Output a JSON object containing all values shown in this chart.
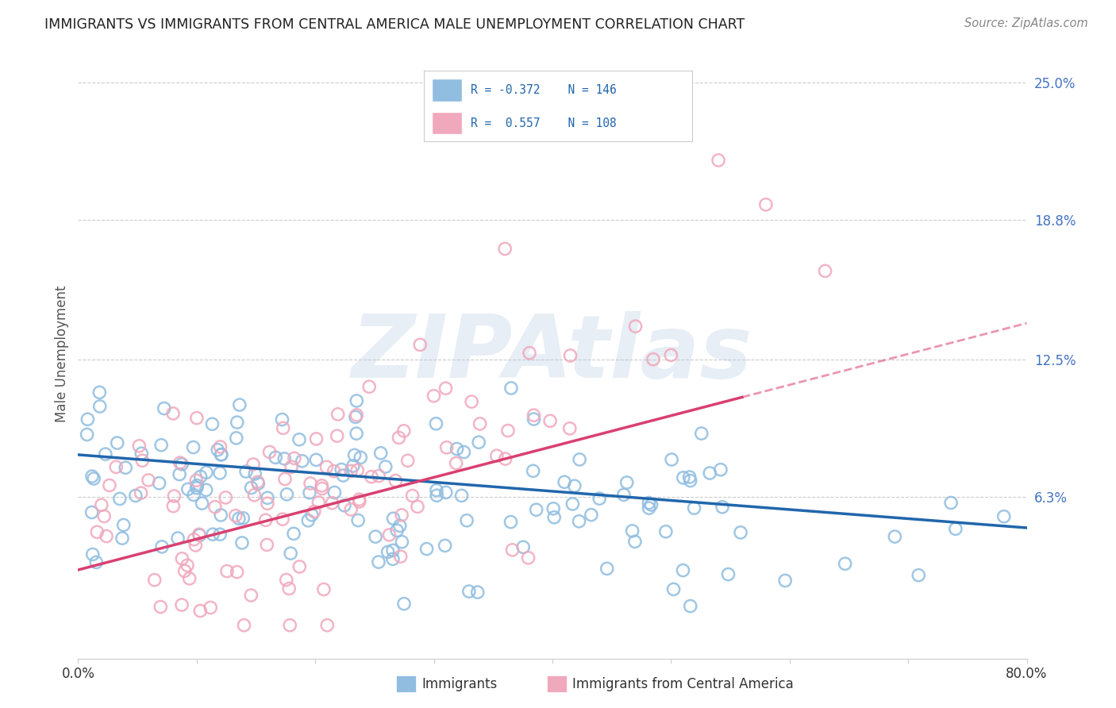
{
  "title": "IMMIGRANTS VS IMMIGRANTS FROM CENTRAL AMERICA MALE UNEMPLOYMENT CORRELATION CHART",
  "source": "Source: ZipAtlas.com",
  "ylabel": "Male Unemployment",
  "xmin": 0.0,
  "xmax": 0.8,
  "ymin": -0.01,
  "ymax": 0.265,
  "yticks": [
    0.063,
    0.125,
    0.188,
    0.25
  ],
  "ytick_labels": [
    "6.3%",
    "12.5%",
    "18.8%",
    "25.0%"
  ],
  "blue_R": -0.372,
  "blue_N": 146,
  "pink_R": 0.557,
  "pink_N": 108,
  "blue_color": "#90bde0",
  "pink_color": "#f0a8bc",
  "blue_line_color": "#2166ac",
  "pink_line_color": "#d94070",
  "blue_line_start_y": 0.082,
  "blue_line_end_y": 0.049,
  "pink_line_start_x": 0.0,
  "pink_line_start_y": 0.03,
  "pink_line_solid_end_x": 0.56,
  "pink_line_solid_end_y": 0.108,
  "pink_line_dash_end_x": 0.8,
  "pink_line_dash_end_y": 0.135,
  "watermark": "ZIPAtlas",
  "legend_blue_label": "Immigrants",
  "legend_pink_label": "Immigrants from Central America",
  "background_color": "#ffffff",
  "grid_color": "#cccccc",
  "title_color": "#222222",
  "axis_label_color": "#555555",
  "tick_label_color_right": "#4472c4",
  "tick_label_color_bottom": "#333333"
}
